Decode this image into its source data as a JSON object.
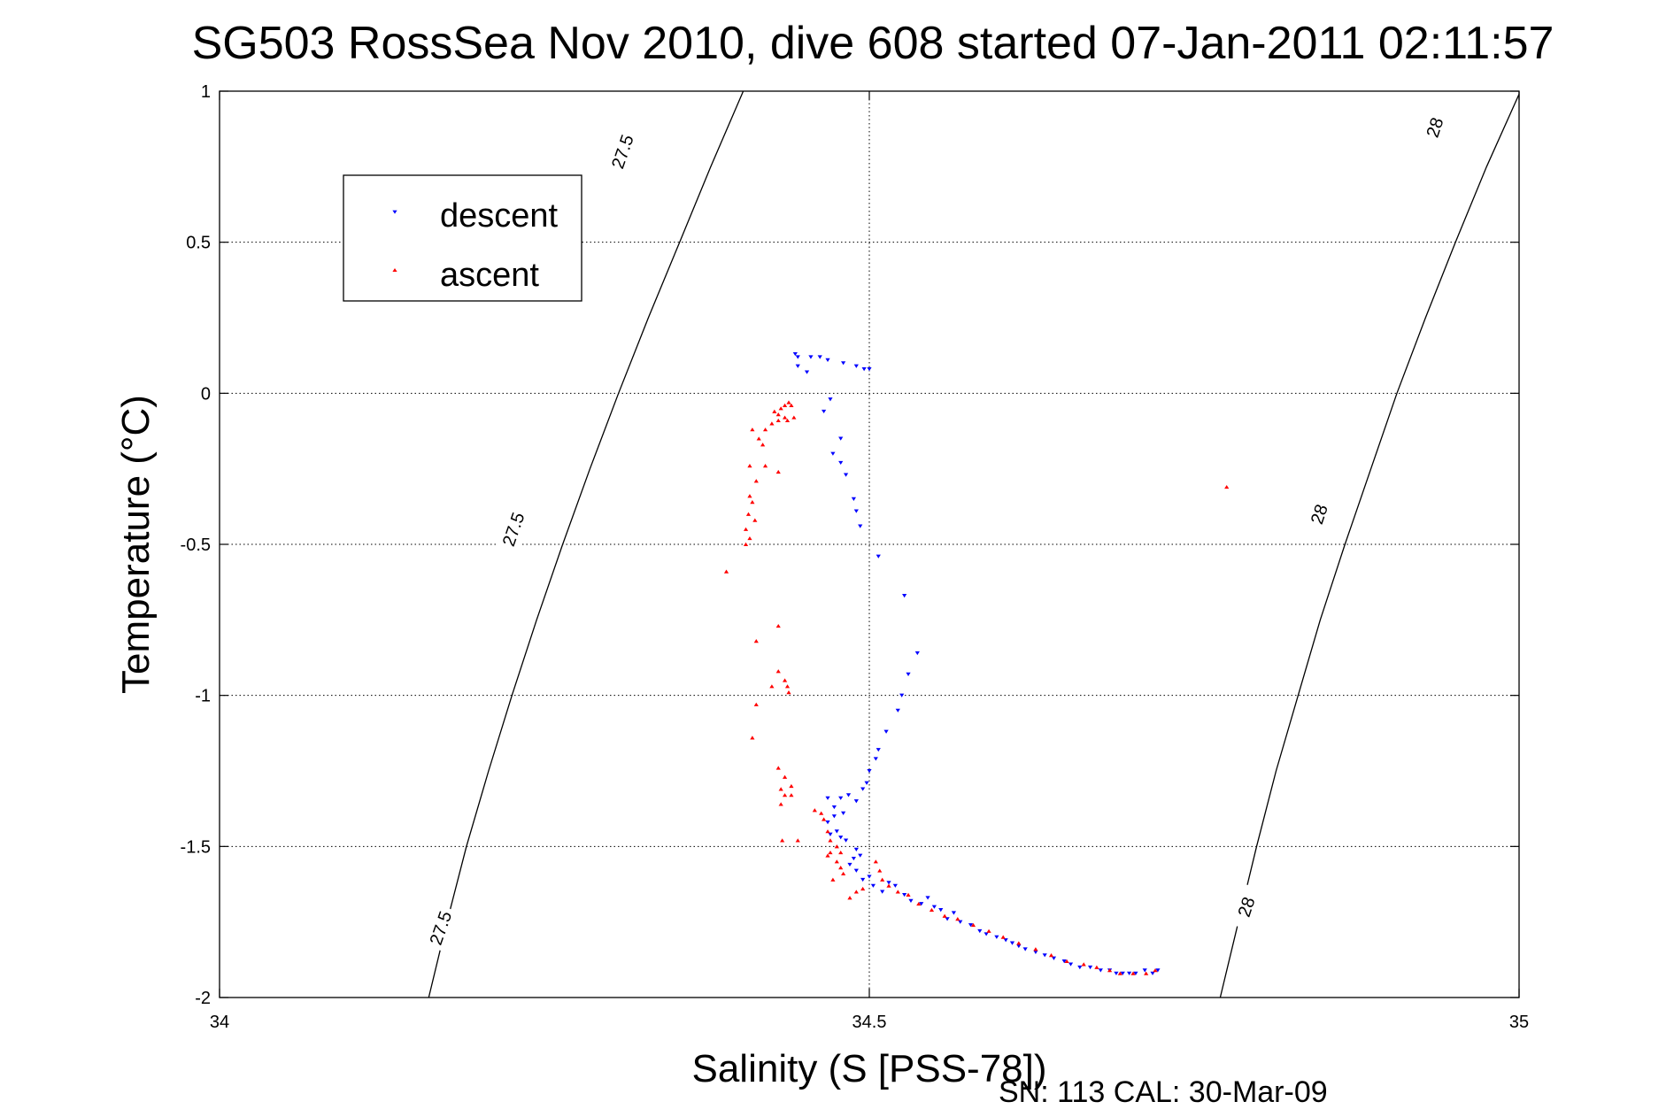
{
  "chart_data": {
    "type": "scatter",
    "title": "SG503 RossSea Nov 2010, dive 608 started 07-Jan-2011 02:11:57",
    "xlabel": "Salinity (S [PSS-78])",
    "ylabel": "Temperature (°C)",
    "xlim": [
      34,
      35
    ],
    "ylim": [
      -2,
      1
    ],
    "xticks": [
      "34",
      "34.5",
      "35"
    ],
    "yticks": [
      "1",
      "0.5",
      "0",
      "-0.5",
      "-1",
      "-1.5",
      "-2"
    ],
    "grid": true,
    "legend_position": "top-left",
    "footer": "SN: 113  CAL: 30-Mar-09",
    "density_contours": [
      {
        "level": "27.5",
        "points": [
          [
            34.161,
            -2.0
          ],
          [
            34.175,
            -1.75
          ],
          [
            34.19,
            -1.5
          ],
          [
            34.207,
            -1.25
          ],
          [
            34.225,
            -1.0
          ],
          [
            34.244,
            -0.75
          ],
          [
            34.264,
            -0.5
          ],
          [
            34.285,
            -0.25
          ],
          [
            34.307,
            0.0
          ],
          [
            34.33,
            0.25
          ],
          [
            34.354,
            0.5
          ],
          [
            34.378,
            0.75
          ],
          [
            34.403,
            1.0
          ]
        ],
        "labels": [
          [
            34.17,
            -1.77
          ],
          [
            34.226,
            -0.45
          ],
          [
            34.31,
            0.8
          ]
        ]
      },
      {
        "level": "28",
        "points": [
          [
            34.77,
            -2.0
          ],
          [
            34.784,
            -1.75
          ],
          [
            34.798,
            -1.5
          ],
          [
            34.813,
            -1.25
          ],
          [
            34.83,
            -1.0
          ],
          [
            34.847,
            -0.75
          ],
          [
            34.866,
            -0.5
          ],
          [
            34.886,
            -0.25
          ],
          [
            34.906,
            0.0
          ],
          [
            34.928,
            0.25
          ],
          [
            34.951,
            0.5
          ],
          [
            34.975,
            0.75
          ],
          [
            35.0,
            0.99
          ]
        ],
        "labels": [
          [
            34.79,
            -1.7
          ],
          [
            34.846,
            -0.4
          ],
          [
            34.935,
            0.88
          ]
        ]
      }
    ],
    "series": [
      {
        "name": "descent",
        "color": "#0000ff",
        "marker": "triangle-down",
        "points": [
          [
            34.443,
            0.13
          ],
          [
            34.445,
            0.12
          ],
          [
            34.455,
            0.12
          ],
          [
            34.462,
            0.12
          ],
          [
            34.468,
            0.11
          ],
          [
            34.48,
            0.1
          ],
          [
            34.49,
            0.09
          ],
          [
            34.496,
            0.08
          ],
          [
            34.5,
            0.08
          ],
          [
            34.445,
            0.09
          ],
          [
            34.452,
            0.07
          ],
          [
            34.47,
            -0.02
          ],
          [
            34.465,
            -0.06
          ],
          [
            34.478,
            -0.15
          ],
          [
            34.472,
            -0.2
          ],
          [
            34.478,
            -0.23
          ],
          [
            34.482,
            -0.27
          ],
          [
            34.488,
            -0.35
          ],
          [
            34.49,
            -0.39
          ],
          [
            34.493,
            -0.44
          ],
          [
            34.507,
            -0.54
          ],
          [
            34.527,
            -0.67
          ],
          [
            34.537,
            -0.86
          ],
          [
            34.53,
            -0.93
          ],
          [
            34.525,
            -1.0
          ],
          [
            34.522,
            -1.05
          ],
          [
            34.513,
            -1.12
          ],
          [
            34.507,
            -1.18
          ],
          [
            34.505,
            -1.21
          ],
          [
            34.5,
            -1.25
          ],
          [
            34.498,
            -1.29
          ],
          [
            34.495,
            -1.31
          ],
          [
            34.49,
            -1.35
          ],
          [
            34.484,
            -1.33
          ],
          [
            34.48,
            -1.39
          ],
          [
            34.473,
            -1.4
          ],
          [
            34.468,
            -1.42
          ],
          [
            34.47,
            -1.46
          ],
          [
            34.475,
            -1.45
          ],
          [
            34.478,
            -1.47
          ],
          [
            34.482,
            -1.48
          ],
          [
            34.473,
            -1.37
          ],
          [
            34.468,
            -1.34
          ],
          [
            34.478,
            -1.34
          ],
          [
            34.49,
            -1.51
          ],
          [
            34.488,
            -1.54
          ],
          [
            34.485,
            -1.56
          ],
          [
            34.49,
            -1.58
          ],
          [
            34.493,
            -1.53
          ],
          [
            34.495,
            -1.61
          ],
          [
            34.5,
            -1.6
          ],
          [
            34.503,
            -1.63
          ],
          [
            34.51,
            -1.65
          ],
          [
            34.515,
            -1.62
          ],
          [
            34.52,
            -1.63
          ],
          [
            34.527,
            -1.66
          ],
          [
            34.532,
            -1.68
          ],
          [
            34.54,
            -1.69
          ],
          [
            34.545,
            -1.67
          ],
          [
            34.55,
            -1.7
          ],
          [
            34.555,
            -1.71
          ],
          [
            34.56,
            -1.74
          ],
          [
            34.565,
            -1.72
          ],
          [
            34.57,
            -1.75
          ],
          [
            34.578,
            -1.76
          ],
          [
            34.585,
            -1.78
          ],
          [
            34.59,
            -1.79
          ],
          [
            34.598,
            -1.8
          ],
          [
            34.605,
            -1.81
          ],
          [
            34.61,
            -1.82
          ],
          [
            34.615,
            -1.83
          ],
          [
            34.62,
            -1.84
          ],
          [
            34.628,
            -1.85
          ],
          [
            34.635,
            -1.86
          ],
          [
            34.642,
            -1.87
          ],
          [
            34.65,
            -1.88
          ],
          [
            34.655,
            -1.89
          ],
          [
            34.662,
            -1.9
          ],
          [
            34.67,
            -1.9
          ],
          [
            34.678,
            -1.91
          ],
          [
            34.685,
            -1.91
          ],
          [
            34.69,
            -1.92
          ],
          [
            34.695,
            -1.92
          ],
          [
            34.7,
            -1.92
          ],
          [
            34.705,
            -1.92
          ],
          [
            34.712,
            -1.91
          ],
          [
            34.718,
            -1.92
          ],
          [
            34.722,
            -1.91
          ]
        ]
      },
      {
        "name": "ascent",
        "color": "#ff0000",
        "marker": "triangle-up",
        "points": [
          [
            34.435,
            -0.04
          ],
          [
            34.438,
            -0.03
          ],
          [
            34.44,
            -0.04
          ],
          [
            34.432,
            -0.05
          ],
          [
            34.427,
            -0.06
          ],
          [
            34.43,
            -0.07
          ],
          [
            34.435,
            -0.08
          ],
          [
            34.442,
            -0.08
          ],
          [
            34.437,
            -0.09
          ],
          [
            34.43,
            -0.09
          ],
          [
            34.425,
            -0.1
          ],
          [
            34.42,
            -0.12
          ],
          [
            34.41,
            -0.12
          ],
          [
            34.415,
            -0.15
          ],
          [
            34.418,
            -0.17
          ],
          [
            34.42,
            -0.24
          ],
          [
            34.408,
            -0.24
          ],
          [
            34.413,
            -0.29
          ],
          [
            34.43,
            -0.26
          ],
          [
            34.408,
            -0.34
          ],
          [
            34.41,
            -0.36
          ],
          [
            34.407,
            -0.4
          ],
          [
            34.412,
            -0.42
          ],
          [
            34.405,
            -0.45
          ],
          [
            34.408,
            -0.48
          ],
          [
            34.405,
            -0.5
          ],
          [
            34.39,
            -0.59
          ],
          [
            34.43,
            -0.77
          ],
          [
            34.413,
            -0.82
          ],
          [
            34.43,
            -0.92
          ],
          [
            34.435,
            -0.95
          ],
          [
            34.437,
            -0.97
          ],
          [
            34.438,
            -0.99
          ],
          [
            34.425,
            -0.97
          ],
          [
            34.413,
            -1.03
          ],
          [
            34.41,
            -1.14
          ],
          [
            34.43,
            -1.24
          ],
          [
            34.435,
            -1.27
          ],
          [
            34.44,
            -1.3
          ],
          [
            34.432,
            -1.31
          ],
          [
            34.435,
            -1.33
          ],
          [
            34.44,
            -1.33
          ],
          [
            34.432,
            -1.36
          ],
          [
            34.433,
            -1.48
          ],
          [
            34.445,
            -1.48
          ],
          [
            34.458,
            -1.38
          ],
          [
            34.463,
            -1.39
          ],
          [
            34.465,
            -1.41
          ],
          [
            34.468,
            -1.45
          ],
          [
            34.47,
            -1.48
          ],
          [
            34.475,
            -1.5
          ],
          [
            34.478,
            -1.52
          ],
          [
            34.47,
            -1.52
          ],
          [
            34.468,
            -1.53
          ],
          [
            34.475,
            -1.55
          ],
          [
            34.478,
            -1.57
          ],
          [
            34.48,
            -1.59
          ],
          [
            34.472,
            -1.61
          ],
          [
            34.49,
            -1.65
          ],
          [
            34.485,
            -1.67
          ],
          [
            34.495,
            -1.64
          ],
          [
            34.505,
            -1.55
          ],
          [
            34.508,
            -1.58
          ],
          [
            34.51,
            -1.61
          ],
          [
            34.515,
            -1.63
          ],
          [
            34.522,
            -1.65
          ],
          [
            34.53,
            -1.66
          ],
          [
            34.538,
            -1.69
          ],
          [
            34.548,
            -1.71
          ],
          [
            34.558,
            -1.73
          ],
          [
            34.568,
            -1.74
          ],
          [
            34.58,
            -1.76
          ],
          [
            34.592,
            -1.78
          ],
          [
            34.603,
            -1.8
          ],
          [
            34.615,
            -1.82
          ],
          [
            34.628,
            -1.84
          ],
          [
            34.64,
            -1.86
          ],
          [
            34.652,
            -1.88
          ],
          [
            34.665,
            -1.89
          ],
          [
            34.675,
            -1.9
          ],
          [
            34.685,
            -1.91
          ],
          [
            34.693,
            -1.92
          ],
          [
            34.703,
            -1.92
          ],
          [
            34.713,
            -1.92
          ],
          [
            34.72,
            -1.91
          ],
          [
            34.775,
            -0.31
          ]
        ]
      }
    ]
  }
}
